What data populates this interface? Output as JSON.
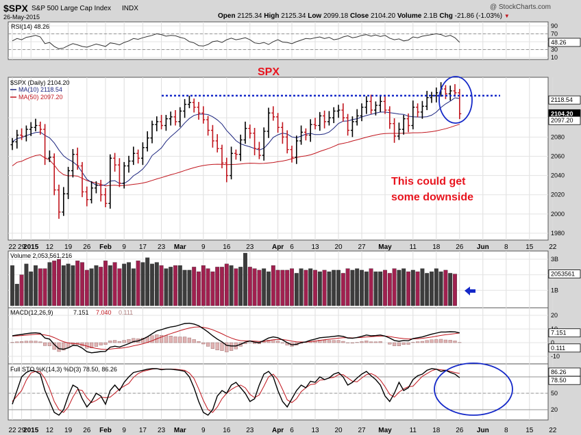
{
  "header": {
    "symbol": "$SPX",
    "name": "S&P 500 Large Cap Index",
    "exchange": "INDX",
    "date": "26-May-2015",
    "copyright": "@ StockCharts.com",
    "open_label": "Open",
    "open": "2125.34",
    "high_label": "High",
    "high": "2125.34",
    "low_label": "Low",
    "low": "2099.18",
    "close_label": "Close",
    "close": "2104.20",
    "volume_label": "Volume",
    "volume": "2.1B",
    "chg_label": "Chg",
    "chg": "-21.86 (-1.03%)"
  },
  "colors": {
    "up": "#000000",
    "down": "#c0141c",
    "ma10": "#1a237e",
    "ma50": "#c0141c",
    "volume_up": "#3c3c3c",
    "volume_down": "#a0204f",
    "annotation": "#e8141e",
    "circle": "#1428c8",
    "panel_bg": "#ffffff",
    "background": "#d7d7d7"
  },
  "annotations": {
    "title": "SPX",
    "note_line1": "This could get",
    "note_line2": "some downside",
    "resistance_level": 2123
  },
  "x_axis": {
    "labels": [
      "22",
      "29",
      "2015",
      "12",
      "19",
      "26",
      "Feb",
      "9",
      "17",
      "23",
      "Mar",
      "9",
      "16",
      "23",
      "Apr",
      "6",
      "13",
      "20",
      "27",
      "May",
      "11",
      "18",
      "26",
      "Jun",
      "8",
      "15",
      "22"
    ],
    "indices": [
      0,
      2,
      4,
      8,
      12,
      16,
      20,
      24,
      28,
      32,
      36,
      41,
      46,
      51,
      57,
      60,
      65,
      70,
      75,
      80,
      86,
      91,
      96,
      101,
      106,
      111,
      116
    ]
  },
  "chart_data": [
    {
      "type": "line",
      "name": "RSI(14)",
      "legend": "RSI(14) 48.26",
      "last": "48.26",
      "ylim": [
        10,
        95
      ],
      "ticks": [
        10,
        30,
        50,
        70,
        90
      ],
      "levels": [
        30,
        70
      ],
      "values": [
        52,
        58,
        55,
        61,
        63,
        66,
        62,
        45,
        48,
        38,
        32,
        34,
        40,
        45,
        42,
        38,
        36,
        40,
        44,
        41,
        38,
        47,
        45,
        42,
        48,
        52,
        58,
        56,
        60,
        63,
        66,
        70,
        68,
        64,
        66,
        65,
        61,
        58,
        50,
        47,
        40,
        39,
        43,
        50,
        52,
        48,
        55,
        59,
        55,
        57,
        60,
        55,
        47,
        45,
        48,
        43,
        50,
        55,
        49,
        48,
        45,
        50,
        54,
        58,
        57,
        60,
        62,
        58,
        61,
        55,
        57,
        62,
        65,
        60,
        62,
        66,
        68,
        64,
        67,
        63,
        66,
        59,
        55,
        57,
        52,
        54,
        62,
        60,
        64,
        66,
        68,
        70,
        68,
        63,
        66,
        60,
        48.26
      ]
    },
    {
      "type": "ohlc",
      "name": "$SPX (Daily)",
      "legend": "$SPX (Daily) 2104.20",
      "ylim": [
        1975,
        2140
      ],
      "ticks": [
        1980,
        2000,
        2020,
        2040,
        2060,
        2080,
        2100
      ],
      "close": [
        2075,
        2082,
        2081,
        2088,
        2090,
        2092,
        2088,
        2058,
        2059,
        2025,
        2002,
        2021,
        2045,
        2062,
        2050,
        2023,
        2015,
        2027,
        2030,
        2020,
        2011,
        2058,
        2051,
        2032,
        2050,
        2055,
        2063,
        2058,
        2069,
        2079,
        2093,
        2096,
        2092,
        2099,
        2101,
        2096,
        2107,
        2114,
        2116,
        2111,
        2105,
        2098,
        2087,
        2076,
        2068,
        2053,
        2040,
        2063,
        2062,
        2077,
        2089,
        2084,
        2068,
        2061,
        2086,
        2105,
        2101,
        2090,
        2080,
        2067,
        2059,
        2076,
        2085,
        2082,
        2093,
        2092,
        2102,
        2096,
        2100,
        2107,
        2108,
        2100,
        2087,
        2096,
        2102,
        2111,
        2117,
        2108,
        2113,
        2117,
        2108,
        2094,
        2081,
        2088,
        2099,
        2092,
        2111,
        2106,
        2112,
        2121,
        2123,
        2126,
        2130,
        2125,
        2128,
        2126,
        2104.2
      ],
      "ma10": 2118.54,
      "ma50": 2097.2,
      "ma10_legend": "MA(10) 2118.54",
      "ma50_legend": "MA(50) 2097.20"
    },
    {
      "type": "bar",
      "name": "Volume",
      "legend": "Volume 2,053,561,216",
      "last": "2053561",
      "ylim": [
        0,
        3.4
      ],
      "tick_labels": [
        "3B",
        "2B",
        "1B"
      ],
      "ticks": [
        3,
        2,
        1
      ],
      "values": [
        2.6,
        1.4,
        2.0,
        2.7,
        2.2,
        2.6,
        2.4,
        2.4,
        2.8,
        2.9,
        3.0,
        2.6,
        2.7,
        2.6,
        2.9,
        2.8,
        2.3,
        2.4,
        2.6,
        2.5,
        2.9,
        2.6,
        2.8,
        2.4,
        2.7,
        2.8,
        2.4,
        2.9,
        2.8,
        3.1,
        2.7,
        2.8,
        2.6,
        2.4,
        2.5,
        2.6,
        2.6,
        2.3,
        2.3,
        2.5,
        2.2,
        2.6,
        2.4,
        2.2,
        2.5,
        2.5,
        2.7,
        2.6,
        2.4,
        2.5,
        3.4,
        2.5,
        2.4,
        2.3,
        2.4,
        2.2,
        2.6,
        2.3,
        2.3,
        2.3,
        2.4,
        2.1,
        2.4,
        2.3,
        2.4,
        2.3,
        2.2,
        2.3,
        2.2,
        2.3,
        2.3,
        2.1,
        2.4,
        2.3,
        2.4,
        2.3,
        2.2,
        2.4,
        2.2,
        2.2,
        2.3,
        2.1,
        2.4,
        2.3,
        2.4,
        2.2,
        2.3,
        2.2,
        2.4,
        2.1,
        2.2,
        2.4,
        2.2,
        2.3,
        2.1,
        2.05
      ]
    },
    {
      "type": "line",
      "name": "MACD(12,26,9)",
      "legend_name": "MACD(12,26,9)",
      "legend_macd": "7.151",
      "legend_signal": "7.040",
      "legend_hist": "0.111",
      "ylim": [
        -14,
        24
      ],
      "ticks": [
        20,
        10,
        0,
        -10
      ],
      "last_macd": "7.151",
      "last_hist": "0.111",
      "macd": [
        5.0,
        5.6,
        6.0,
        6.6,
        7.0,
        7.2,
        6.8,
        3.4,
        2.6,
        -1.3,
        -4.4,
        -4.8,
        -3.8,
        -2.0,
        -2.2,
        -4.0,
        -6.6,
        -7.4,
        -7.0,
        -6.5,
        -6.4,
        -3.3,
        -2.6,
        -3.2,
        -2.0,
        -0.7,
        0.8,
        1.3,
        2.6,
        4.3,
        6.5,
        8.6,
        9.5,
        10.6,
        11.5,
        12.0,
        13.0,
        14.0,
        14.2,
        13.6,
        12.4,
        10.2,
        7.8,
        5.0,
        2.6,
        0.6,
        -2.0,
        -2.4,
        -2.4,
        -1.2,
        0.4,
        1.2,
        0.4,
        0.0,
        1.6,
        3.4,
        4.2,
        3.6,
        2.0,
        0.0,
        -1.6,
        -1.2,
        0.0,
        0.6,
        1.8,
        2.6,
        3.6,
        3.9,
        4.2,
        4.6,
        5.0,
        4.6,
        3.4,
        3.2,
        3.8,
        4.6,
        5.6,
        5.0,
        5.2,
        5.6,
        4.8,
        3.4,
        1.6,
        1.0,
        1.6,
        1.4,
        3.0,
        3.6,
        4.2,
        5.2,
        6.2,
        7.0,
        7.8,
        7.8,
        8.0,
        7.9,
        7.151
      ],
      "signal": [
        4.8,
        5.0,
        5.2,
        5.5,
        5.8,
        6.1,
        6.2,
        5.6,
        5.0,
        3.7,
        2.1,
        0.7,
        -0.2,
        -0.6,
        -0.9,
        -1.5,
        -2.5,
        -3.5,
        -4.2,
        -4.7,
        -5.0,
        -4.7,
        -4.3,
        -4.1,
        -3.7,
        -3.1,
        -2.3,
        -1.6,
        -0.8,
        0.2,
        1.4,
        2.8,
        4.1,
        5.4,
        6.6,
        7.7,
        8.8,
        9.8,
        10.7,
        11.3,
        11.5,
        11.2,
        10.5,
        9.4,
        8.0,
        6.5,
        4.8,
        3.4,
        2.2,
        1.5,
        1.3,
        1.3,
        1.1,
        0.9,
        1.0,
        1.5,
        2.1,
        2.4,
        2.3,
        1.8,
        1.1,
        0.6,
        0.5,
        0.5,
        0.8,
        1.2,
        1.7,
        2.1,
        2.5,
        2.9,
        3.3,
        3.6,
        3.6,
        3.5,
        3.6,
        3.8,
        4.2,
        4.4,
        4.6,
        4.8,
        4.8,
        4.5,
        3.9,
        3.4,
        3.0,
        2.7,
        2.8,
        2.9,
        3.2,
        3.6,
        4.1,
        4.7,
        5.3,
        5.8,
        6.2,
        6.6,
        7.04
      ]
    },
    {
      "type": "line",
      "name": "Full STO %K(14,3) %D(3)",
      "legend": "Full STO %K(14,3) %D(3) 78.50, 86.26",
      "last_k": "78.50",
      "last_d": "86.26",
      "ylim": [
        5,
        100
      ],
      "ticks": [
        80,
        50,
        20
      ],
      "levels": [
        20,
        50,
        80
      ],
      "k": [
        30,
        55,
        80,
        88,
        92,
        90,
        85,
        55,
        35,
        15,
        10,
        20,
        45,
        65,
        60,
        40,
        25,
        35,
        50,
        45,
        30,
        55,
        65,
        55,
        70,
        80,
        88,
        90,
        92,
        94,
        95,
        95,
        93,
        94,
        94,
        93,
        92,
        90,
        80,
        60,
        35,
        15,
        10,
        20,
        45,
        55,
        50,
        65,
        70,
        60,
        50,
        35,
        40,
        65,
        85,
        90,
        80,
        55,
        35,
        25,
        40,
        55,
        65,
        60,
        72,
        70,
        80,
        75,
        78,
        85,
        88,
        80,
        65,
        70,
        78,
        85,
        90,
        82,
        75,
        65,
        45,
        35,
        50,
        70,
        55,
        60,
        75,
        82,
        85,
        92,
        95,
        94,
        90,
        92,
        88,
        85,
        78.5
      ],
      "d": [
        35,
        45,
        55,
        74,
        87,
        90,
        89,
        77,
        58,
        35,
        20,
        15,
        25,
        43,
        57,
        55,
        42,
        33,
        37,
        43,
        42,
        43,
        50,
        58,
        63,
        68,
        79,
        86,
        90,
        92,
        94,
        95,
        94,
        94,
        94,
        94,
        93,
        92,
        87,
        77,
        58,
        37,
        20,
        15,
        25,
        40,
        50,
        57,
        62,
        65,
        60,
        48,
        42,
        47,
        63,
        80,
        85,
        75,
        57,
        38,
        33,
        40,
        53,
        60,
        66,
        67,
        74,
        75,
        78,
        79,
        84,
        84,
        78,
        72,
        71,
        78,
        84,
        86,
        82,
        74,
        62,
        48,
        43,
        52,
        58,
        62,
        63,
        72,
        81,
        86,
        91,
        94,
        93,
        92,
        90,
        88,
        86.26
      ]
    }
  ]
}
